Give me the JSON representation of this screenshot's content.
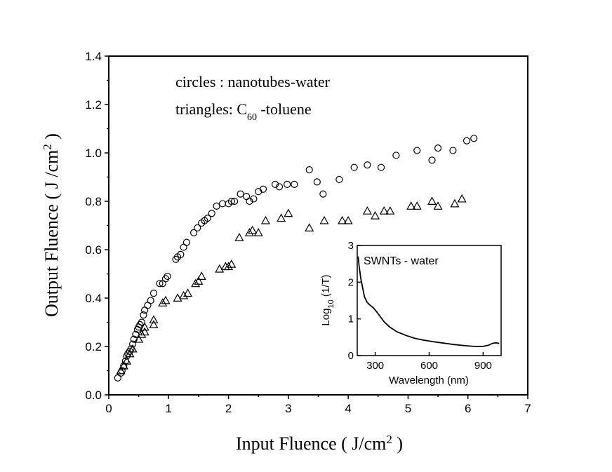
{
  "chart_data": [
    {
      "type": "scatter",
      "xlabel": "Input Fluence ( J/cm",
      "xlabel_sup": "2",
      "xlabel_end": " )",
      "ylabel": "Output Fluence ( J /cm",
      "ylabel_sup": "2",
      "ylabel_end": " )",
      "xlim": [
        0,
        7
      ],
      "ylim": [
        0.0,
        1.4
      ],
      "x_ticks": [
        "0",
        "1",
        "2",
        "3",
        "4",
        "5",
        "6",
        "7"
      ],
      "y_ticks": [
        "0.0",
        "0.2",
        "0.4",
        "0.6",
        "0.8",
        "1.0",
        "1.2",
        "1.4"
      ],
      "annotations": {
        "line1": "circles : nanotubes-water",
        "line2_prefix": "triangles: C",
        "line2_sub": "60",
        "line2_suffix": " -toluene"
      },
      "series": [
        {
          "marker": "circle",
          "points": [
            [
              0.15,
              0.07
            ],
            [
              0.2,
              0.09
            ],
            [
              0.22,
              0.1
            ],
            [
              0.25,
              0.12
            ],
            [
              0.28,
              0.14
            ],
            [
              0.3,
              0.16
            ],
            [
              0.32,
              0.17
            ],
            [
              0.35,
              0.18
            ],
            [
              0.37,
              0.19
            ],
            [
              0.4,
              0.21
            ],
            [
              0.42,
              0.23
            ],
            [
              0.45,
              0.25
            ],
            [
              0.48,
              0.27
            ],
            [
              0.5,
              0.28
            ],
            [
              0.52,
              0.29
            ],
            [
              0.55,
              0.3
            ],
            [
              0.58,
              0.33
            ],
            [
              0.6,
              0.35
            ],
            [
              0.65,
              0.37
            ],
            [
              0.7,
              0.39
            ],
            [
              0.75,
              0.42
            ],
            [
              0.85,
              0.46
            ],
            [
              0.9,
              0.46
            ],
            [
              0.95,
              0.48
            ],
            [
              0.98,
              0.49
            ],
            [
              1.12,
              0.56
            ],
            [
              1.15,
              0.57
            ],
            [
              1.2,
              0.58
            ],
            [
              1.25,
              0.61
            ],
            [
              1.3,
              0.63
            ],
            [
              1.42,
              0.67
            ],
            [
              1.48,
              0.69
            ],
            [
              1.55,
              0.71
            ],
            [
              1.6,
              0.72
            ],
            [
              1.65,
              0.73
            ],
            [
              1.72,
              0.75
            ],
            [
              1.8,
              0.78
            ],
            [
              1.9,
              0.79
            ],
            [
              2.0,
              0.79
            ],
            [
              2.05,
              0.8
            ],
            [
              2.1,
              0.8
            ],
            [
              2.2,
              0.83
            ],
            [
              2.3,
              0.82
            ],
            [
              2.35,
              0.8
            ],
            [
              2.42,
              0.81
            ],
            [
              2.5,
              0.84
            ],
            [
              2.58,
              0.85
            ],
            [
              2.78,
              0.87
            ],
            [
              2.85,
              0.86
            ],
            [
              2.98,
              0.87
            ],
            [
              3.1,
              0.87
            ],
            [
              3.35,
              0.93
            ],
            [
              3.48,
              0.88
            ],
            [
              3.58,
              0.83
            ],
            [
              3.85,
              0.89
            ],
            [
              4.1,
              0.94
            ],
            [
              4.32,
              0.95
            ],
            [
              4.55,
              0.94
            ],
            [
              4.8,
              0.99
            ],
            [
              5.15,
              1.01
            ],
            [
              5.4,
              0.97
            ],
            [
              5.5,
              1.02
            ],
            [
              5.75,
              1.01
            ],
            [
              5.98,
              1.05
            ],
            [
              6.1,
              1.06
            ]
          ]
        },
        {
          "marker": "triangle",
          "points": [
            [
              0.2,
              0.1
            ],
            [
              0.25,
              0.12
            ],
            [
              0.3,
              0.14
            ],
            [
              0.35,
              0.17
            ],
            [
              0.4,
              0.19
            ],
            [
              0.5,
              0.23
            ],
            [
              0.55,
              0.25
            ],
            [
              0.6,
              0.26
            ],
            [
              0.6,
              0.28
            ],
            [
              0.75,
              0.29
            ],
            [
              0.75,
              0.31
            ],
            [
              0.9,
              0.38
            ],
            [
              0.95,
              0.39
            ],
            [
              1.15,
              0.4
            ],
            [
              1.25,
              0.41
            ],
            [
              1.32,
              0.42
            ],
            [
              1.45,
              0.46
            ],
            [
              1.5,
              0.47
            ],
            [
              1.55,
              0.49
            ],
            [
              1.85,
              0.52
            ],
            [
              1.95,
              0.53
            ],
            [
              2.0,
              0.53
            ],
            [
              2.05,
              0.54
            ],
            [
              2.18,
              0.65
            ],
            [
              2.35,
              0.67
            ],
            [
              2.4,
              0.68
            ],
            [
              2.5,
              0.67
            ],
            [
              2.62,
              0.72
            ],
            [
              2.88,
              0.73
            ],
            [
              3.0,
              0.75
            ],
            [
              3.35,
              0.69
            ],
            [
              3.6,
              0.72
            ],
            [
              3.9,
              0.72
            ],
            [
              4.0,
              0.72
            ],
            [
              4.32,
              0.76
            ],
            [
              4.45,
              0.74
            ],
            [
              4.6,
              0.76
            ],
            [
              4.7,
              0.76
            ],
            [
              5.05,
              0.78
            ],
            [
              5.15,
              0.78
            ],
            [
              5.4,
              0.8
            ],
            [
              5.5,
              0.78
            ],
            [
              5.78,
              0.79
            ],
            [
              5.9,
              0.81
            ]
          ]
        }
      ]
    },
    {
      "type": "line",
      "title": "SWNTs - water",
      "xlabel": "Wavelength (nm)",
      "ylabel_prefix": "Log",
      "ylabel_sub": "10",
      "ylabel_suffix": " (1/T)",
      "xlim": [
        200,
        1000
      ],
      "ylim": [
        0,
        3
      ],
      "x_ticks": [
        "300",
        "600",
        "900"
      ],
      "y_ticks": [
        "0",
        "1",
        "2",
        "3"
      ],
      "series": [
        {
          "points": [
            [
              205,
              2.7
            ],
            [
              210,
              2.45
            ],
            [
              220,
              2.1
            ],
            [
              230,
              1.85
            ],
            [
              240,
              1.6
            ],
            [
              255,
              1.45
            ],
            [
              270,
              1.38
            ],
            [
              290,
              1.3
            ],
            [
              310,
              1.18
            ],
            [
              330,
              1.05
            ],
            [
              350,
              0.92
            ],
            [
              380,
              0.78
            ],
            [
              420,
              0.65
            ],
            [
              470,
              0.55
            ],
            [
              520,
              0.47
            ],
            [
              570,
              0.42
            ],
            [
              620,
              0.38
            ],
            [
              680,
              0.34
            ],
            [
              740,
              0.3
            ],
            [
              800,
              0.27
            ],
            [
              850,
              0.25
            ],
            [
              900,
              0.25
            ],
            [
              930,
              0.28
            ],
            [
              950,
              0.33
            ],
            [
              970,
              0.35
            ],
            [
              990,
              0.33
            ]
          ]
        }
      ]
    }
  ]
}
